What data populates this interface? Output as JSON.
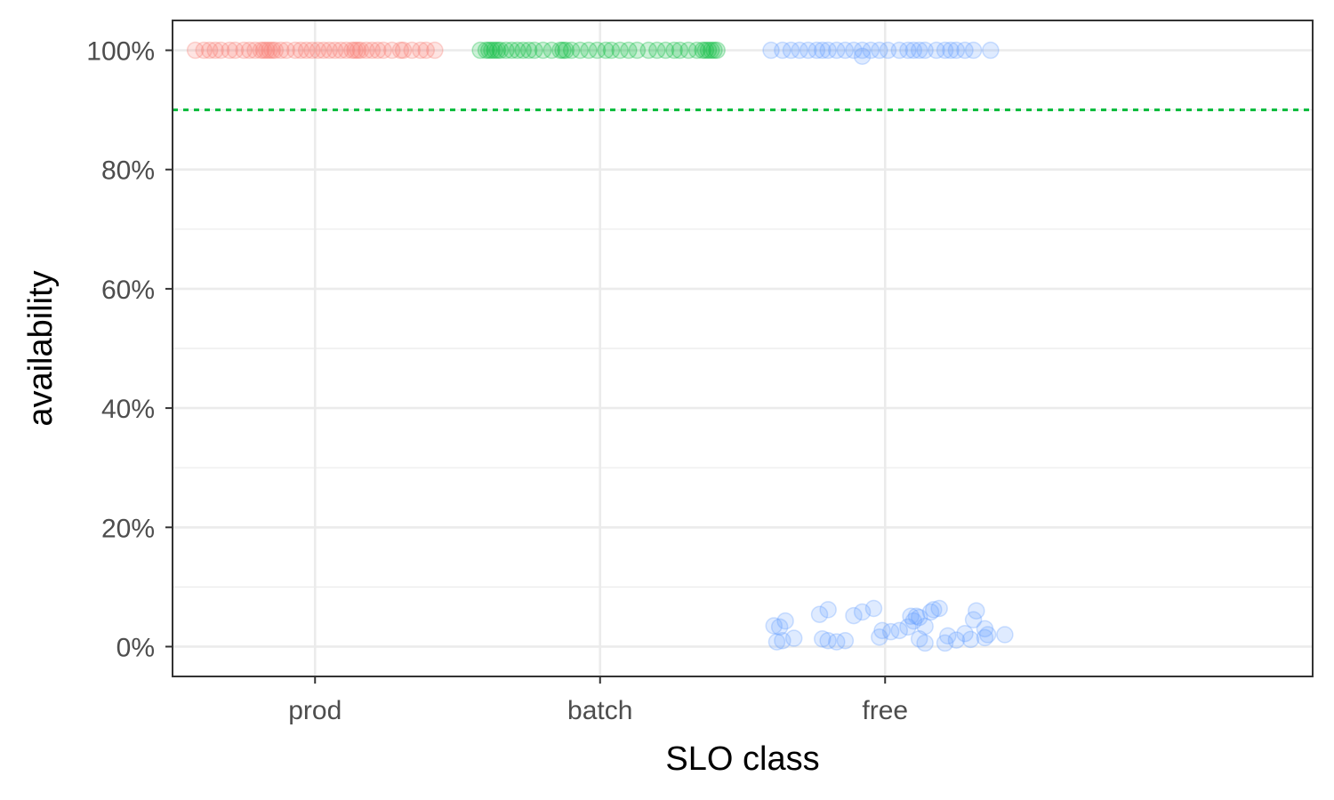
{
  "chart_data": {
    "type": "scatter",
    "title": "",
    "xlabel": "SLO class",
    "ylabel": "availability",
    "categories": [
      "prod",
      "batch",
      "free"
    ],
    "ylim": [
      -0.05,
      1.05
    ],
    "yticks": [
      0,
      0.2,
      0.4,
      0.6,
      0.8,
      1.0
    ],
    "ytick_labels": [
      "0%",
      "20%",
      "40%",
      "60%",
      "80%",
      "100%"
    ],
    "grid": true,
    "legend": "none",
    "reference_line": {
      "y": 0.9,
      "style": "dotted",
      "color": "#00BA38"
    },
    "colors": {
      "prod": "#F8766D",
      "batch": "#00BA38",
      "free": "#619CFF"
    },
    "series": [
      {
        "category": "prod",
        "points": [
          {
            "x": -0.42,
            "y": 1.0
          },
          {
            "x": -0.39,
            "y": 1.0
          },
          {
            "x": -0.37,
            "y": 1.0
          },
          {
            "x": -0.35,
            "y": 1.0
          },
          {
            "x": -0.33,
            "y": 1.0
          },
          {
            "x": -0.3,
            "y": 1.0
          },
          {
            "x": -0.28,
            "y": 1.0
          },
          {
            "x": -0.25,
            "y": 1.0
          },
          {
            "x": -0.23,
            "y": 1.0
          },
          {
            "x": -0.21,
            "y": 1.0
          },
          {
            "x": -0.19,
            "y": 1.0
          },
          {
            "x": -0.18,
            "y": 1.0
          },
          {
            "x": -0.17,
            "y": 1.0
          },
          {
            "x": -0.16,
            "y": 1.0
          },
          {
            "x": -0.15,
            "y": 1.0
          },
          {
            "x": -0.14,
            "y": 1.0
          },
          {
            "x": -0.12,
            "y": 1.0
          },
          {
            "x": -0.1,
            "y": 1.0
          },
          {
            "x": -0.07,
            "y": 1.0
          },
          {
            "x": -0.05,
            "y": 1.0
          },
          {
            "x": -0.03,
            "y": 1.0
          },
          {
            "x": -0.01,
            "y": 1.0
          },
          {
            "x": 0.01,
            "y": 1.0
          },
          {
            "x": 0.03,
            "y": 1.0
          },
          {
            "x": 0.05,
            "y": 1.0
          },
          {
            "x": 0.07,
            "y": 1.0
          },
          {
            "x": 0.09,
            "y": 1.0
          },
          {
            "x": 0.11,
            "y": 1.0
          },
          {
            "x": 0.13,
            "y": 1.0
          },
          {
            "x": 0.14,
            "y": 1.0
          },
          {
            "x": 0.15,
            "y": 1.0
          },
          {
            "x": 0.16,
            "y": 1.0
          },
          {
            "x": 0.18,
            "y": 1.0
          },
          {
            "x": 0.2,
            "y": 1.0
          },
          {
            "x": 0.22,
            "y": 1.0
          },
          {
            "x": 0.24,
            "y": 1.0
          },
          {
            "x": 0.27,
            "y": 1.0
          },
          {
            "x": 0.3,
            "y": 1.0
          },
          {
            "x": 0.31,
            "y": 1.0
          },
          {
            "x": 0.34,
            "y": 1.0
          },
          {
            "x": 0.37,
            "y": 1.0
          },
          {
            "x": 0.39,
            "y": 1.0
          },
          {
            "x": 0.42,
            "y": 1.0
          }
        ]
      },
      {
        "category": "batch",
        "points": [
          {
            "x": -0.42,
            "y": 1.0
          },
          {
            "x": -0.4,
            "y": 1.0
          },
          {
            "x": -0.39,
            "y": 1.0
          },
          {
            "x": -0.38,
            "y": 1.0
          },
          {
            "x": -0.37,
            "y": 1.0
          },
          {
            "x": -0.36,
            "y": 1.0
          },
          {
            "x": -0.35,
            "y": 1.0
          },
          {
            "x": -0.33,
            "y": 1.0
          },
          {
            "x": -0.31,
            "y": 1.0
          },
          {
            "x": -0.29,
            "y": 1.0
          },
          {
            "x": -0.27,
            "y": 1.0
          },
          {
            "x": -0.25,
            "y": 1.0
          },
          {
            "x": -0.23,
            "y": 1.0
          },
          {
            "x": -0.2,
            "y": 1.0
          },
          {
            "x": -0.17,
            "y": 1.0
          },
          {
            "x": -0.14,
            "y": 1.0
          },
          {
            "x": -0.13,
            "y": 1.0
          },
          {
            "x": -0.12,
            "y": 1.0
          },
          {
            "x": -0.1,
            "y": 1.0
          },
          {
            "x": -0.07,
            "y": 1.0
          },
          {
            "x": -0.04,
            "y": 1.0
          },
          {
            "x": -0.01,
            "y": 1.0
          },
          {
            "x": 0.02,
            "y": 1.0
          },
          {
            "x": 0.04,
            "y": 1.0
          },
          {
            "x": 0.07,
            "y": 1.0
          },
          {
            "x": 0.1,
            "y": 1.0
          },
          {
            "x": 0.13,
            "y": 1.0
          },
          {
            "x": 0.17,
            "y": 1.0
          },
          {
            "x": 0.2,
            "y": 1.0
          },
          {
            "x": 0.23,
            "y": 1.0
          },
          {
            "x": 0.26,
            "y": 1.0
          },
          {
            "x": 0.28,
            "y": 1.0
          },
          {
            "x": 0.31,
            "y": 1.0
          },
          {
            "x": 0.34,
            "y": 1.0
          },
          {
            "x": 0.36,
            "y": 1.0
          },
          {
            "x": 0.37,
            "y": 1.0
          },
          {
            "x": 0.38,
            "y": 1.0
          },
          {
            "x": 0.39,
            "y": 1.0
          },
          {
            "x": 0.4,
            "y": 1.0
          },
          {
            "x": 0.41,
            "y": 1.0
          }
        ]
      },
      {
        "category": "free",
        "points": [
          {
            "x": -0.4,
            "y": 1.0
          },
          {
            "x": -0.36,
            "y": 1.0
          },
          {
            "x": -0.33,
            "y": 1.0
          },
          {
            "x": -0.3,
            "y": 1.0
          },
          {
            "x": -0.27,
            "y": 1.0
          },
          {
            "x": -0.24,
            "y": 1.0
          },
          {
            "x": -0.22,
            "y": 1.0
          },
          {
            "x": -0.2,
            "y": 1.0
          },
          {
            "x": -0.17,
            "y": 1.0
          },
          {
            "x": -0.14,
            "y": 1.0
          },
          {
            "x": -0.11,
            "y": 1.0
          },
          {
            "x": -0.08,
            "y": 1.0
          },
          {
            "x": -0.05,
            "y": 1.0
          },
          {
            "x": -0.02,
            "y": 1.0
          },
          {
            "x": 0.01,
            "y": 1.0
          },
          {
            "x": 0.05,
            "y": 1.0
          },
          {
            "x": 0.08,
            "y": 1.0
          },
          {
            "x": 0.1,
            "y": 1.0
          },
          {
            "x": 0.12,
            "y": 1.0
          },
          {
            "x": 0.14,
            "y": 1.0
          },
          {
            "x": 0.18,
            "y": 1.0
          },
          {
            "x": 0.21,
            "y": 1.0
          },
          {
            "x": 0.23,
            "y": 1.0
          },
          {
            "x": 0.25,
            "y": 1.0
          },
          {
            "x": 0.28,
            "y": 1.0
          },
          {
            "x": 0.31,
            "y": 1.0
          },
          {
            "x": 0.37,
            "y": 1.0
          },
          {
            "x": -0.08,
            "y": 0.99
          },
          {
            "x": -0.39,
            "y": 0.035
          },
          {
            "x": -0.37,
            "y": 0.033
          },
          {
            "x": -0.35,
            "y": 0.043
          },
          {
            "x": -0.36,
            "y": 0.01
          },
          {
            "x": -0.38,
            "y": 0.008
          },
          {
            "x": -0.32,
            "y": 0.014
          },
          {
            "x": -0.23,
            "y": 0.054
          },
          {
            "x": -0.2,
            "y": 0.062
          },
          {
            "x": -0.22,
            "y": 0.013
          },
          {
            "x": -0.2,
            "y": 0.01
          },
          {
            "x": -0.17,
            "y": 0.008
          },
          {
            "x": -0.14,
            "y": 0.01
          },
          {
            "x": -0.11,
            "y": 0.052
          },
          {
            "x": -0.08,
            "y": 0.058
          },
          {
            "x": -0.04,
            "y": 0.064
          },
          {
            "x": -0.01,
            "y": 0.027
          },
          {
            "x": 0.02,
            "y": 0.025
          },
          {
            "x": -0.02,
            "y": 0.016
          },
          {
            "x": 0.05,
            "y": 0.027
          },
          {
            "x": 0.09,
            "y": 0.051
          },
          {
            "x": 0.1,
            "y": 0.043
          },
          {
            "x": 0.12,
            "y": 0.049
          },
          {
            "x": 0.14,
            "y": 0.034
          },
          {
            "x": 0.17,
            "y": 0.062
          },
          {
            "x": 0.16,
            "y": 0.058
          },
          {
            "x": 0.19,
            "y": 0.064
          },
          {
            "x": 0.12,
            "y": 0.013
          },
          {
            "x": 0.14,
            "y": 0.006
          },
          {
            "x": 0.21,
            "y": 0.006
          },
          {
            "x": 0.25,
            "y": 0.011
          },
          {
            "x": 0.28,
            "y": 0.022
          },
          {
            "x": 0.31,
            "y": 0.045
          },
          {
            "x": 0.32,
            "y": 0.06
          },
          {
            "x": 0.35,
            "y": 0.03
          },
          {
            "x": 0.36,
            "y": 0.02
          },
          {
            "x": 0.35,
            "y": 0.015
          },
          {
            "x": 0.3,
            "y": 0.012
          },
          {
            "x": 0.42,
            "y": 0.02
          },
          {
            "x": 0.08,
            "y": 0.033
          },
          {
            "x": 0.22,
            "y": 0.018
          },
          {
            "x": 0.11,
            "y": 0.051
          }
        ]
      }
    ]
  }
}
